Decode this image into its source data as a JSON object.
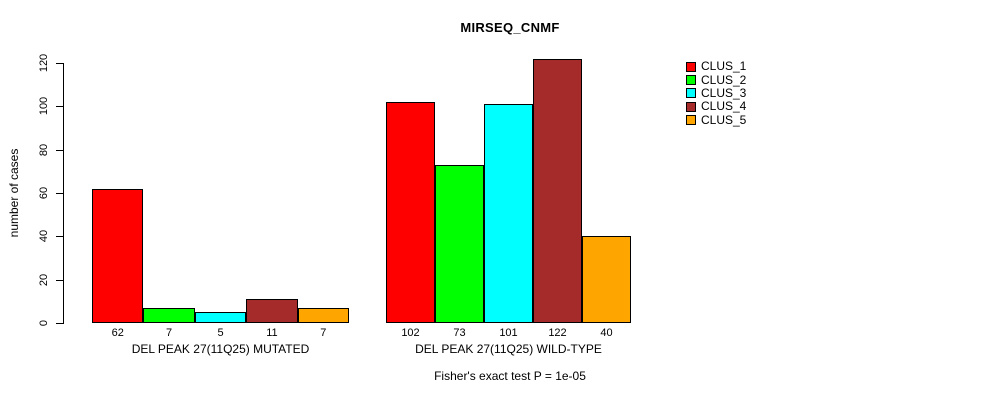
{
  "chart_data": {
    "type": "bar",
    "title": "MIRSEQ_CNMF",
    "ylabel": "number of cases",
    "xlabel": "",
    "ylim": [
      0,
      120
    ],
    "yticks": [
      0,
      20,
      40,
      60,
      80,
      100,
      120
    ],
    "grid": false,
    "legend_position": "right",
    "categories": [
      "DEL PEAK 27(11Q25) MUTATED",
      "DEL PEAK 27(11Q25) WILD-TYPE"
    ],
    "series": [
      {
        "name": "CLUS_1",
        "color": "#FF0000",
        "values": [
          62,
          102
        ]
      },
      {
        "name": "CLUS_2",
        "color": "#00FF00",
        "values": [
          7,
          73
        ]
      },
      {
        "name": "CLUS_3",
        "color": "#00FFFF",
        "values": [
          5,
          101
        ]
      },
      {
        "name": "CLUS_4",
        "color": "#A52A2A",
        "values": [
          11,
          122
        ]
      },
      {
        "name": "CLUS_5",
        "color": "#FFA500",
        "values": [
          7,
          40
        ]
      }
    ],
    "bar_value_labels": [
      [
        62,
        7,
        5,
        11,
        7
      ],
      [
        102,
        73,
        101,
        122,
        40
      ]
    ],
    "footnote": "Fisher's exact test P = 1e-05",
    "bar_border_color": "#000000",
    "axis_color": "#000000"
  }
}
